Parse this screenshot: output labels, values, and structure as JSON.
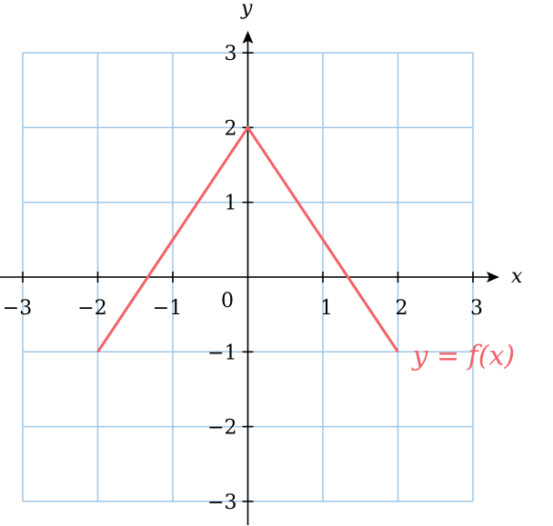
{
  "chart_data": {
    "type": "line",
    "title": "",
    "xlabel": "x",
    "ylabel": "y",
    "xlim": [
      -3,
      3
    ],
    "ylim": [
      -3,
      3
    ],
    "grid": true,
    "x_ticks": [
      "−3",
      "−2",
      "−1",
      "1",
      "2",
      "3"
    ],
    "x_tick_values": [
      -3,
      -2,
      -1,
      1,
      2,
      3
    ],
    "y_ticks": [
      "−3",
      "−2",
      "−1",
      "1",
      "2",
      "3"
    ],
    "y_tick_values": [
      -3,
      -2,
      -1,
      1,
      2,
      3
    ],
    "origin_label": "0",
    "series": [
      {
        "x": [
          -2,
          0,
          2
        ],
        "y": [
          -1,
          2,
          -1
        ],
        "color": "#f4626a"
      }
    ],
    "annotation": {
      "text": "y = f(x)",
      "x": 2,
      "y": -1,
      "color": "#f4626a"
    },
    "grid_color": "#9fc6e6",
    "axis_color": "#000000"
  }
}
